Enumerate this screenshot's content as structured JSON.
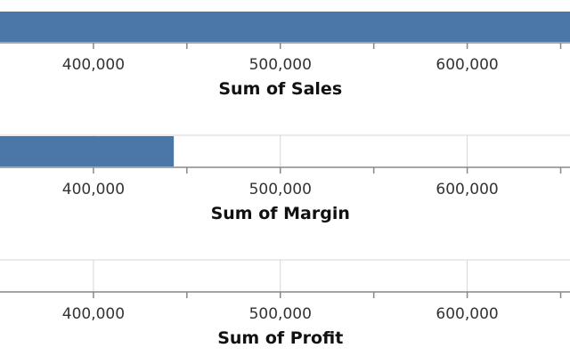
{
  "chart_data": [
    {
      "type": "bar",
      "orientation": "horizontal",
      "xlabel": "Sum of Sales",
      "x_ticks": [
        "400,000",
        "500,000",
        "600,000"
      ],
      "x_tick_values": [
        400000,
        500000,
        600000
      ],
      "xlim": [
        350000,
        655000
      ],
      "value": 655000,
      "bar_color": "#4a76a8",
      "grid": false
    },
    {
      "type": "bar",
      "orientation": "horizontal",
      "xlabel": "Sum of Margin",
      "x_ticks": [
        "400,000",
        "500,000",
        "600,000"
      ],
      "x_tick_values": [
        400000,
        500000,
        600000
      ],
      "xlim": [
        350000,
        655000
      ],
      "value": 443000,
      "bar_color": "#4a76a8",
      "grid": true
    },
    {
      "type": "bar",
      "orientation": "horizontal",
      "xlabel": "Sum of Profit",
      "x_ticks": [
        "400,000",
        "500,000",
        "600,000"
      ],
      "x_tick_values": [
        400000,
        500000,
        600000
      ],
      "xlim": [
        350000,
        655000
      ],
      "value": 0,
      "bar_color": "#4a76a8",
      "grid": true
    }
  ],
  "colors": {
    "bar": "#4a76a8",
    "grid": "#d6d6d6",
    "axis": "#888888",
    "tick_text": "#333333",
    "title_text": "#111111"
  }
}
